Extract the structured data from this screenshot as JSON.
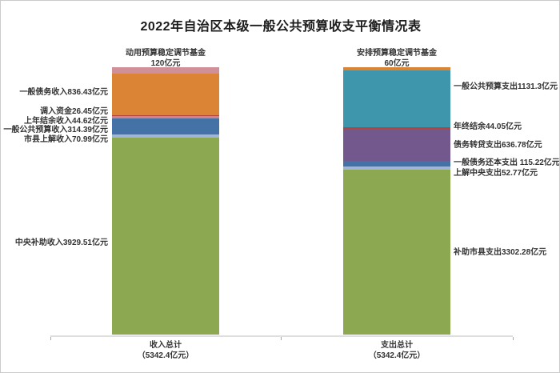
{
  "title": "2022年自治区本级一般公共预算收支平衡情况表",
  "chart_data": {
    "type": "bar",
    "subtype": "stacked-column",
    "unit": "亿元",
    "stack_total": 5342.4,
    "axis_color": "#dedede",
    "tick_color": "#a9a9a9",
    "categories": [
      "收入总计",
      "支出总计"
    ],
    "bars": [
      {
        "category": "收入总计",
        "category_total_label": "（5342.4亿元）",
        "segments": [
          {
            "name": "中央补助收入",
            "value": 3929.51,
            "label": "中央补助收入3929.51亿元",
            "color": "#8CA951"
          },
          {
            "name": "市县上解收入",
            "value": 70.99,
            "label": "市县上解收入70.99亿元",
            "color": "#9FB6D8"
          },
          {
            "name": "一般公共预算收入",
            "value": 314.39,
            "label": "一般公共预算收入314.39亿元",
            "color": "#4471A6"
          },
          {
            "name": "上年结余收入",
            "value": 44.62,
            "label": "上年结余收入44.62亿元",
            "color": "#C48792"
          },
          {
            "name": "调入资金",
            "value": 26.45,
            "label": "调入资金26.45亿元",
            "color": "#B2443F"
          },
          {
            "name": "一般债务收入",
            "value": 836.43,
            "label": "一般债务收入836.43亿元",
            "color": "#DC8435"
          },
          {
            "name": "动用预算稳定调节基金",
            "value": 120,
            "label": "动用预算稳定调节基金",
            "value_label": "120亿元",
            "color": "#CF9099"
          }
        ]
      },
      {
        "category": "支出总计",
        "category_total_label": "（5342.4亿元）",
        "segments": [
          {
            "name": "补助市县支出",
            "value": 3302.28,
            "label": "补助市县支出3302.28亿元",
            "color": "#8CA951"
          },
          {
            "name": "上解中央支出",
            "value": 52.77,
            "label": "上解中央支出52.77亿元",
            "color": "#9FB6D8"
          },
          {
            "name": "一般债务还本支出",
            "value": 115.22,
            "label": "一般债务还本支出 115.22亿元",
            "color": "#4471A6"
          },
          {
            "name": "债务转贷支出",
            "value": 636.78,
            "label": "债务转贷支出636.78亿元",
            "color": "#73588E"
          },
          {
            "name": "年终结余",
            "value": 44.05,
            "label": "年终结余44.05亿元",
            "color": "#B2443F"
          },
          {
            "name": "一般公共预算支出",
            "value": 1131.3,
            "label": "一般公共预算支出1131.3亿元",
            "color": "#3E96AC"
          },
          {
            "name": "安排预算稳定调节基金",
            "value": 60,
            "label": "安排预算稳定调节基金",
            "value_label": "60亿元",
            "color": "#DC8435"
          }
        ]
      }
    ]
  }
}
